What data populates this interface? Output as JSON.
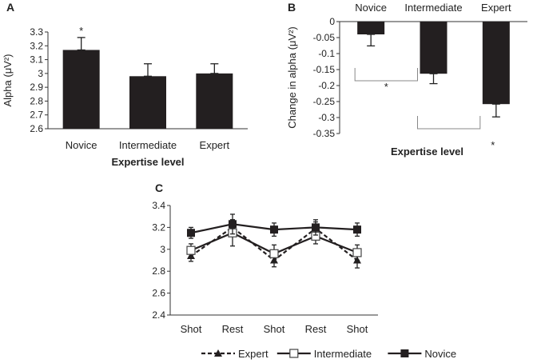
{
  "chart_data": [
    {
      "panel": "A",
      "type": "bar",
      "categories": [
        "Novice",
        "Intermediate",
        "Expert"
      ],
      "values": [
        3.17,
        2.98,
        3.0
      ],
      "errors": [
        0.09,
        0.09,
        0.07
      ],
      "annotations": [
        "*",
        "",
        ""
      ],
      "xlabel": "Expertise level",
      "ylabel": "Alpha (μV²)",
      "ylim": [
        2.6,
        3.3
      ],
      "yticks": [
        "2.6",
        "2.7",
        "2.8",
        "2.9",
        "3",
        "3.1",
        "3.2",
        "3.3"
      ]
    },
    {
      "panel": "B",
      "type": "bar",
      "categories": [
        "Novice",
        "Intermediate",
        "Expert"
      ],
      "values": [
        -0.04,
        -0.163,
        -0.258
      ],
      "errors": [
        0.036,
        0.031,
        0.04
      ],
      "xlabel": "Expertise level",
      "ylabel": "Change in alpha (μV²)",
      "ylim": [
        -0.35,
        0
      ],
      "yticks": [
        "0",
        "-0.05",
        "-0.1",
        "-0.15",
        "-0.2",
        "-0.25",
        "-0.3",
        "-0.35"
      ],
      "significance": [
        {
          "pair": [
            "Novice",
            "Intermediate"
          ],
          "label": "*"
        },
        {
          "pair": [
            "Intermediate",
            "Expert"
          ],
          "label": "*"
        }
      ]
    },
    {
      "panel": "C",
      "type": "line",
      "categories": [
        "Shot",
        "Rest",
        "Shot",
        "Rest",
        "Shot"
      ],
      "ylim": [
        2.4,
        3.4
      ],
      "yticks": [
        "2.4",
        "2.6",
        "2.8",
        "3",
        "3.2",
        "3.4"
      ],
      "series": [
        {
          "name": "Expert",
          "marker": "triangle",
          "dash": true,
          "values": [
            2.94,
            3.2,
            2.9,
            3.19,
            2.9
          ],
          "errors": [
            0.05,
            0.07,
            0.06,
            0.06,
            0.07
          ]
        },
        {
          "name": "Intermediate",
          "marker": "square-open",
          "dash": false,
          "values": [
            2.99,
            3.15,
            2.96,
            3.12,
            2.97
          ],
          "errors": [
            0.06,
            0.12,
            0.08,
            0.07,
            0.07
          ]
        },
        {
          "name": "Novice",
          "marker": "square-filled",
          "dash": false,
          "values": [
            3.15,
            3.23,
            3.18,
            3.2,
            3.18
          ],
          "errors": [
            0.05,
            0.09,
            0.06,
            0.07,
            0.06
          ]
        }
      ]
    }
  ]
}
